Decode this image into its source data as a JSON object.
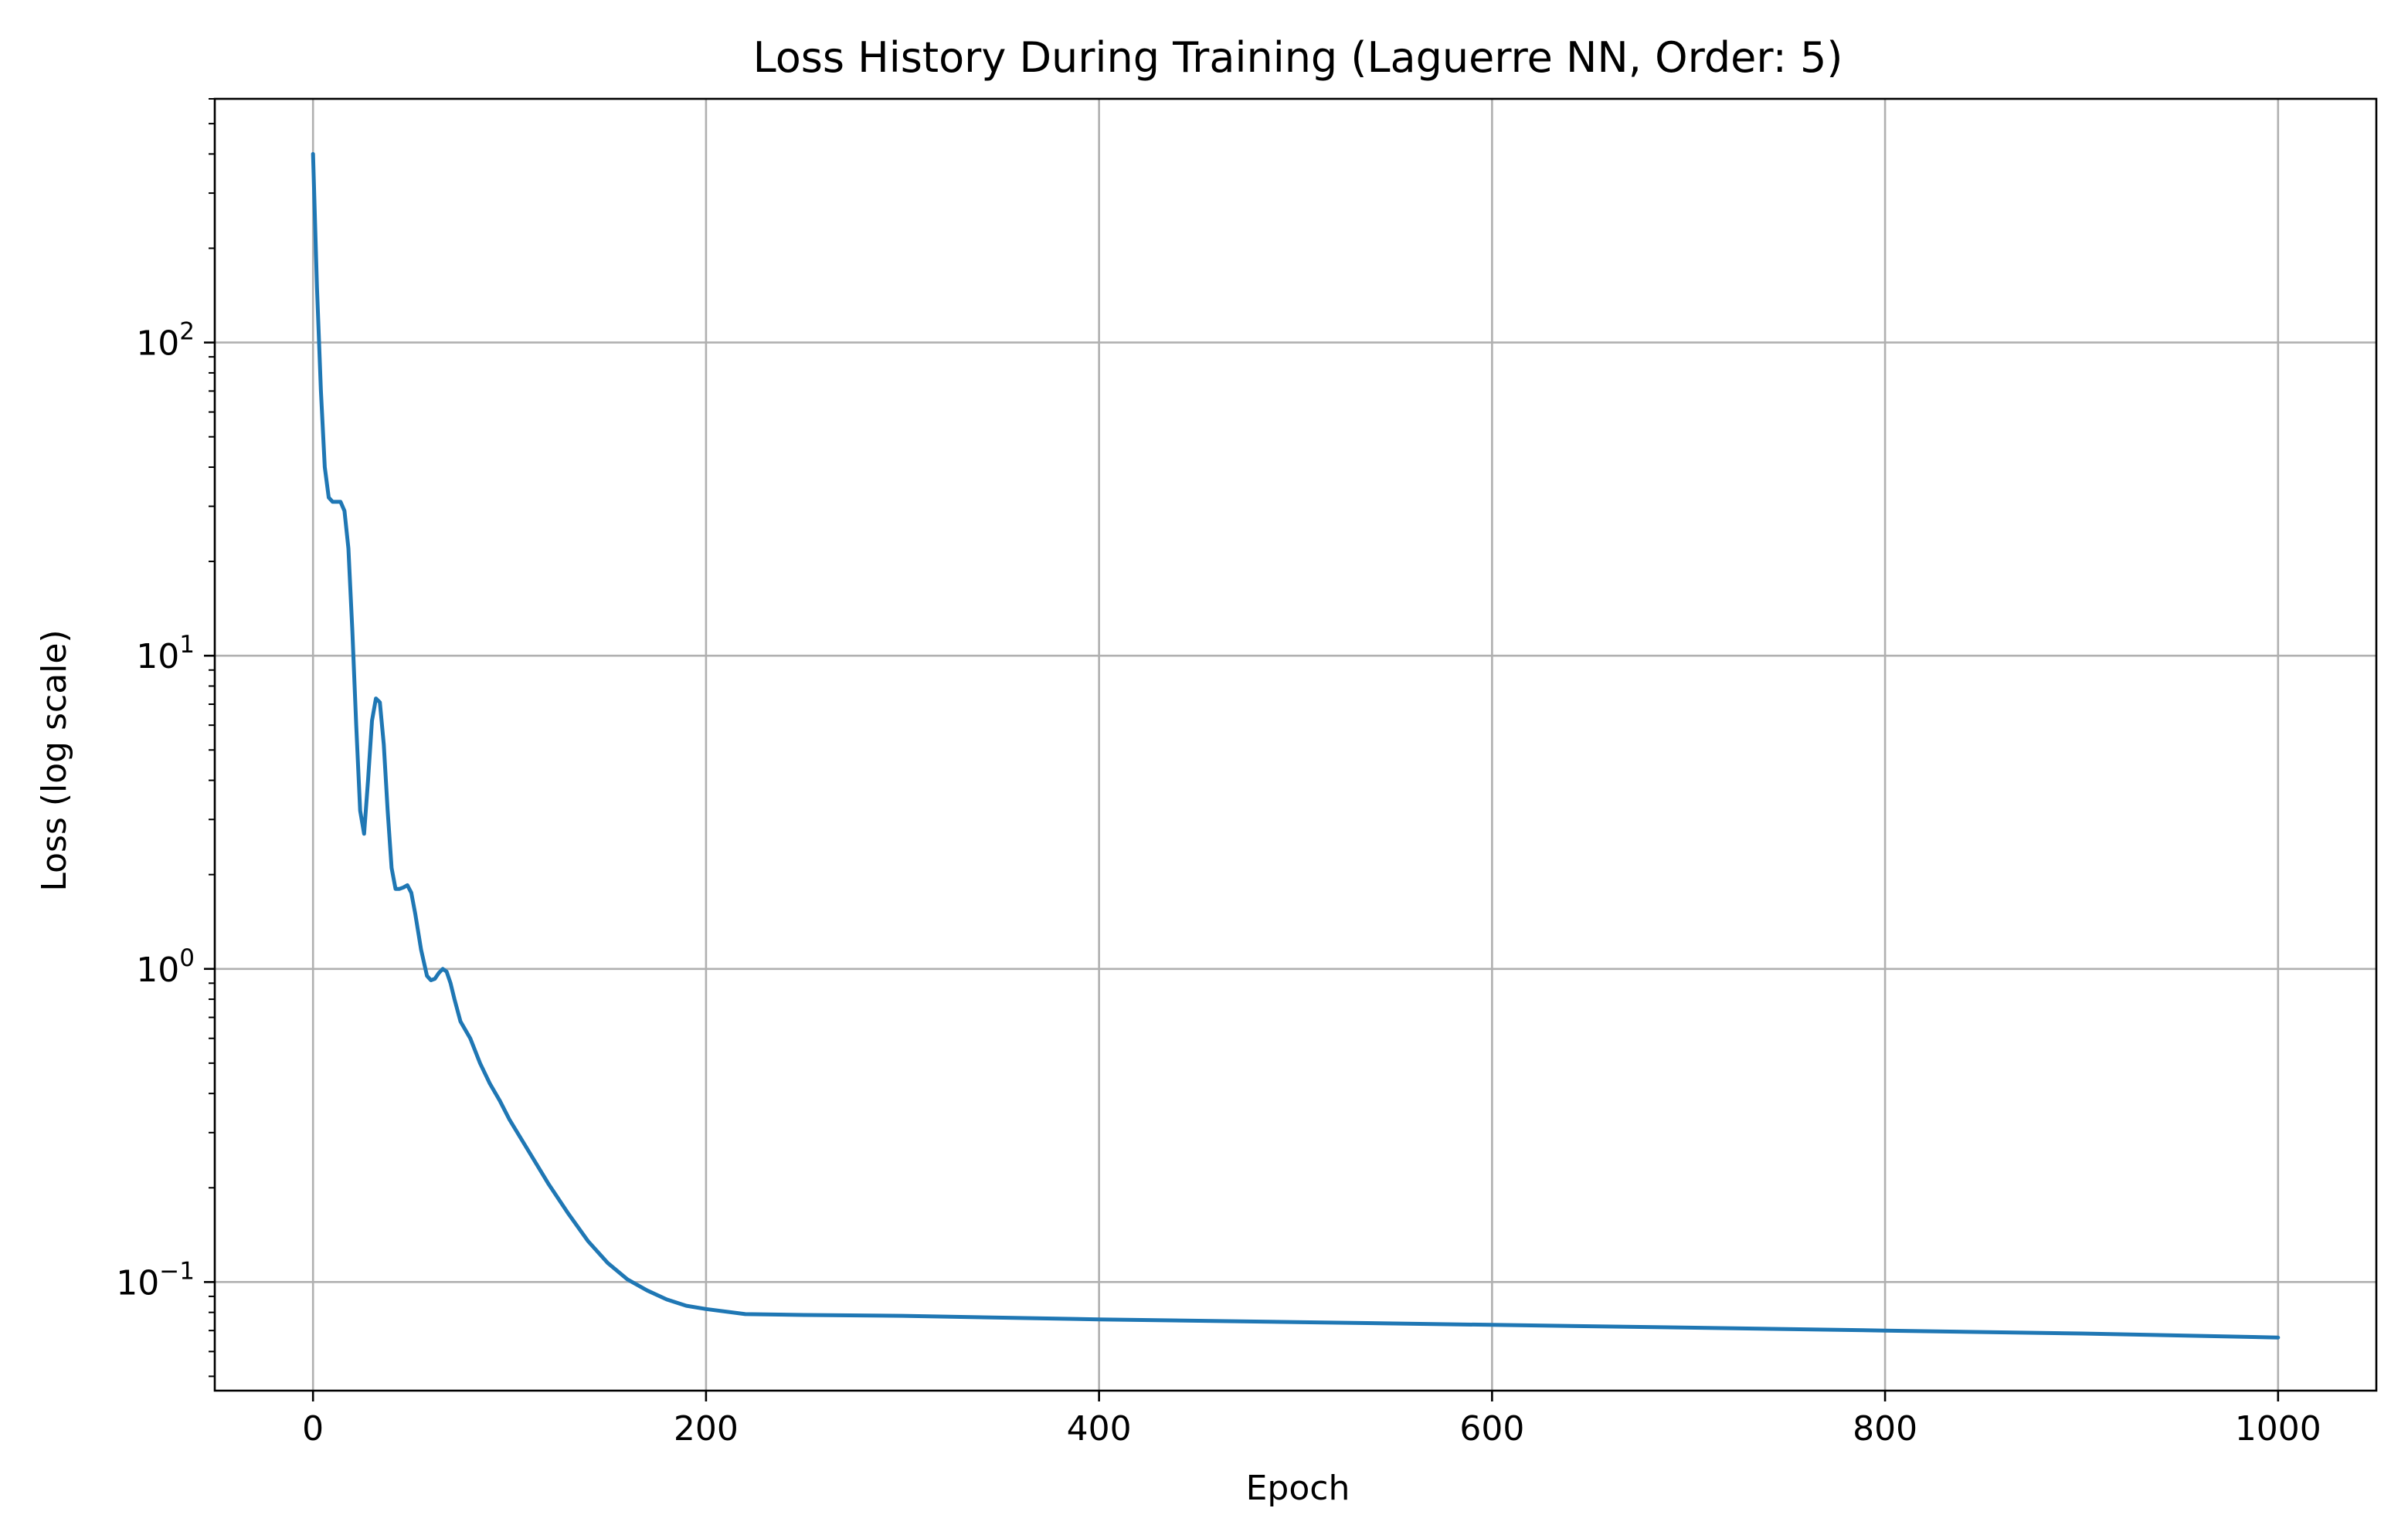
{
  "chart_data": {
    "type": "line",
    "title": "Loss History During Training (Laguerre NN, Order: 5)",
    "xlabel": "Epoch",
    "ylabel": "Loss (log scale)",
    "xlim": [
      -50,
      1050
    ],
    "ylim": [
      0.045,
      600
    ],
    "y_scale": "log",
    "grid": true,
    "x_ticks": [
      0,
      200,
      400,
      600,
      800,
      1000
    ],
    "y_ticks": [
      {
        "value": 0.1,
        "base": "10",
        "exp": "−1"
      },
      {
        "value": 1,
        "base": "10",
        "exp": "0"
      },
      {
        "value": 10,
        "base": "10",
        "exp": "1"
      },
      {
        "value": 100,
        "base": "10",
        "exp": "2"
      }
    ],
    "series": [
      {
        "color": "#1f77b4",
        "x": [
          0,
          2,
          4,
          6,
          8,
          10,
          12,
          14,
          16,
          18,
          20,
          22,
          24,
          26,
          28,
          30,
          32,
          34,
          36,
          38,
          40,
          42,
          44,
          46,
          48,
          50,
          52,
          55,
          58,
          60,
          62,
          64,
          66,
          68,
          70,
          72,
          75,
          80,
          85,
          90,
          95,
          100,
          110,
          120,
          130,
          140,
          150,
          160,
          170,
          180,
          190,
          200,
          220,
          250,
          300,
          400,
          500,
          600,
          700,
          800,
          900,
          1000
        ],
        "y": [
          400,
          150,
          70,
          40,
          32,
          31,
          31,
          31,
          29,
          22,
          12,
          6.0,
          3.2,
          2.7,
          4.0,
          6.2,
          7.3,
          7.1,
          5.2,
          3.2,
          2.1,
          1.8,
          1.8,
          1.82,
          1.85,
          1.75,
          1.5,
          1.15,
          0.95,
          0.92,
          0.93,
          0.97,
          1.0,
          0.98,
          0.9,
          0.8,
          0.68,
          0.6,
          0.5,
          0.43,
          0.38,
          0.33,
          0.26,
          0.205,
          0.165,
          0.135,
          0.115,
          0.102,
          0.094,
          0.088,
          0.084,
          0.082,
          0.079,
          0.0785,
          0.078,
          0.076,
          0.0745,
          0.073,
          0.0715,
          0.07,
          0.0685,
          0.0665
        ]
      }
    ]
  }
}
